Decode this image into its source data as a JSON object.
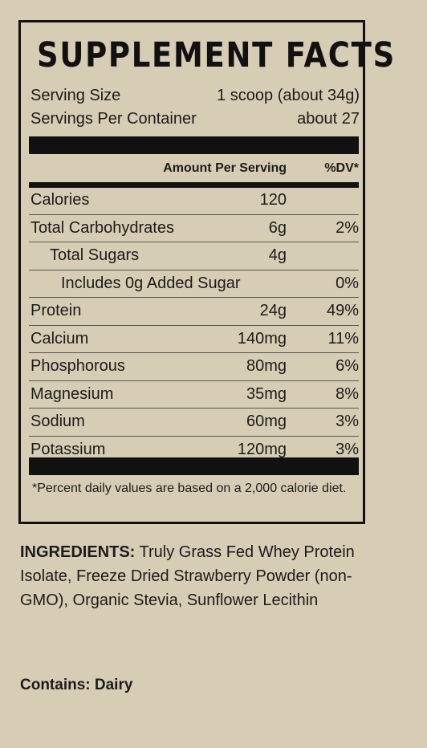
{
  "panel": {
    "title": "SUPPLEMENT FACTS",
    "serving_size_label": "Serving Size",
    "serving_size_value": "1 scoop (about 34g)",
    "servings_label": "Servings Per Container",
    "servings_value": "about 27",
    "header_amount": "Amount Per Serving",
    "header_dv": "%DV*",
    "nutrients": [
      {
        "name": "Calories",
        "amount": "120",
        "dv": ""
      },
      {
        "name": "Total Carbohydrates",
        "amount": "6g",
        "dv": "2%"
      },
      {
        "name": "Total Sugars",
        "amount": "4g",
        "dv": ""
      },
      {
        "name": "Includes 0g Added Sugar",
        "amount": "",
        "dv": "0%"
      },
      {
        "name": "Protein",
        "amount": "24g",
        "dv": "49%"
      },
      {
        "name": "Calcium",
        "amount": "140mg",
        "dv": "11%"
      },
      {
        "name": "Phosphorous",
        "amount": "80mg",
        "dv": "6%"
      },
      {
        "name": "Magnesium",
        "amount": "35mg",
        "dv": "8%"
      },
      {
        "name": "Sodium",
        "amount": "60mg",
        "dv": "3%"
      },
      {
        "name": "Potassium",
        "amount": "120mg",
        "dv": "3%"
      }
    ],
    "footnote": "*Percent daily values are based on a 2,000 calorie diet."
  },
  "ingredients": {
    "label": "INGREDIENTS:",
    "text": " Truly Grass Fed Whey Protein Isolate, Freeze Dried Strawberry Powder (non-GMO), Organic Stevia, Sunflower Lecithin"
  },
  "contains": "Contains: Dairy"
}
